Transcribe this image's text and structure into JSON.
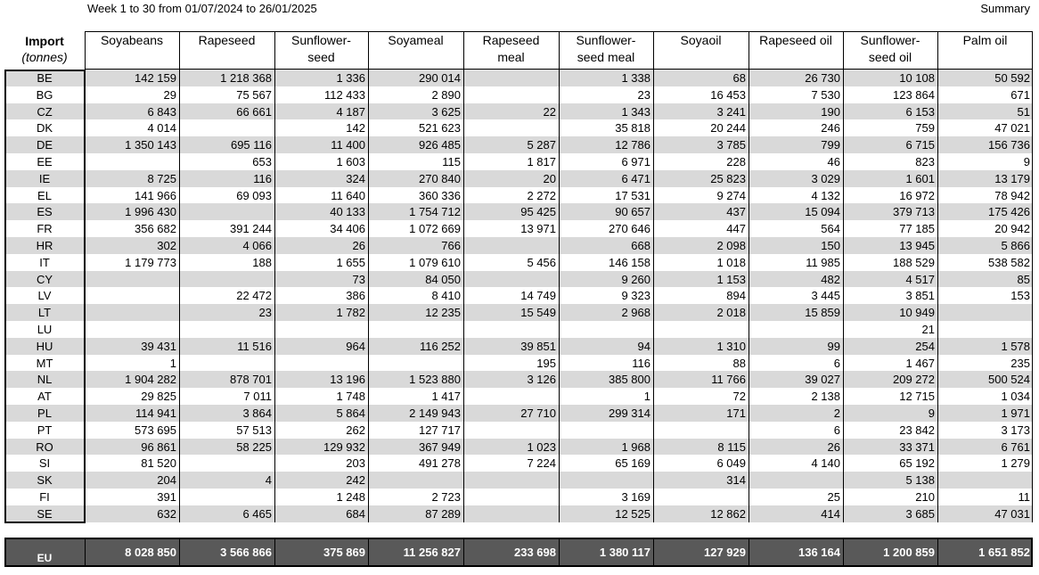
{
  "header": {
    "period": "Week 1 to 30 from 01/07/2024 to 26/01/2025",
    "summary": "Summary"
  },
  "table": {
    "corner": [
      "Import",
      "(tonnes)"
    ],
    "columns": [
      [
        "Soyabeans"
      ],
      [
        "Rapeseed"
      ],
      [
        "Sunflower-",
        "seed"
      ],
      [
        "Soyameal"
      ],
      [
        "Rapeseed",
        "meal"
      ],
      [
        "Sunflower-",
        "seed meal"
      ],
      [
        "Soyaoil"
      ],
      [
        "Rapeseed oil"
      ],
      [
        "Sunflower-",
        "seed oil"
      ],
      [
        "Palm oil"
      ]
    ],
    "rows": [
      [
        "BE",
        "142 159",
        "1 218 368",
        "1 336",
        "290 014",
        null,
        "1 338",
        "68",
        "26 730",
        "10 108",
        "50 592"
      ],
      [
        "BG",
        "29",
        "75 567",
        "112 433",
        "2 890",
        null,
        "23",
        "16 453",
        "7 530",
        "123 864",
        "671"
      ],
      [
        "CZ",
        "6 843",
        "66 661",
        "4 187",
        "3 625",
        "22",
        "1 343",
        "3 241",
        "190",
        "6 153",
        "51"
      ],
      [
        "DK",
        "4 014",
        null,
        "142",
        "521 623",
        null,
        "35 818",
        "20 244",
        "246",
        "759",
        "47 021"
      ],
      [
        "DE",
        "1 350 143",
        "695 116",
        "11 400",
        "926 485",
        "5 287",
        "12 786",
        "3 785",
        "799",
        "6 715",
        "156 736"
      ],
      [
        "EE",
        null,
        "653",
        "1 603",
        "115",
        "1 817",
        "6 971",
        "228",
        "46",
        "823",
        "9"
      ],
      [
        "IE",
        "8 725",
        "116",
        "324",
        "270 840",
        "20",
        "6 471",
        "25 823",
        "3 029",
        "1 601",
        "13 179"
      ],
      [
        "EL",
        "141 966",
        "69 093",
        "11 640",
        "360 336",
        "2 272",
        "17 531",
        "9 274",
        "4 132",
        "16 972",
        "78 942"
      ],
      [
        "ES",
        "1 996 430",
        null,
        "40 133",
        "1 754 712",
        "95 425",
        "90 657",
        "437",
        "15 094",
        "379 713",
        "175 426"
      ],
      [
        "FR",
        "356 682",
        "391 244",
        "34 406",
        "1 072 669",
        "13 971",
        "270 646",
        "447",
        "564",
        "77 185",
        "20 942"
      ],
      [
        "HR",
        "302",
        "4 066",
        "26",
        "766",
        null,
        "668",
        "2 098",
        "150",
        "13 945",
        "5 866"
      ],
      [
        "IT",
        "1 179 773",
        "188",
        "1 655",
        "1 079 610",
        "5 456",
        "146 158",
        "1 018",
        "11 985",
        "188 529",
        "538 582"
      ],
      [
        "CY",
        null,
        null,
        "73",
        "84 050",
        null,
        "9 260",
        "1 153",
        "482",
        "4 517",
        "85"
      ],
      [
        "LV",
        null,
        "22 472",
        "386",
        "8 410",
        "14 749",
        "9 323",
        "894",
        "3 445",
        "3 851",
        "153"
      ],
      [
        "LT",
        null,
        "23",
        "1 782",
        "12 235",
        "15 549",
        "2 968",
        "2 018",
        "15 859",
        "10 949",
        null
      ],
      [
        "LU",
        null,
        null,
        null,
        null,
        null,
        null,
        null,
        null,
        "21",
        null
      ],
      [
        "HU",
        "39 431",
        "11 516",
        "964",
        "116 252",
        "39 851",
        "94",
        "1 310",
        "99",
        "254",
        "1 578"
      ],
      [
        "MT",
        "1",
        null,
        null,
        null,
        "195",
        "116",
        "88",
        "6",
        "1 467",
        "235"
      ],
      [
        "NL",
        "1 904 282",
        "878 701",
        "13 196",
        "1 523 880",
        "3 126",
        "385 800",
        "11 766",
        "39 027",
        "209 272",
        "500 524"
      ],
      [
        "AT",
        "29 825",
        "7 011",
        "1 748",
        "1 417",
        null,
        "1",
        "72",
        "2 138",
        "12 715",
        "1 034"
      ],
      [
        "PL",
        "114 941",
        "3 864",
        "5 864",
        "2 149 943",
        "27 710",
        "299 314",
        "171",
        "2",
        "9",
        "1 971"
      ],
      [
        "PT",
        "573 695",
        "57 513",
        "262",
        "127 717",
        null,
        null,
        null,
        "6",
        "23 842",
        "3 173"
      ],
      [
        "RO",
        "96 861",
        "58 225",
        "129 932",
        "367 949",
        "1 023",
        "1 968",
        "8 115",
        "26",
        "33 371",
        "6 761"
      ],
      [
        "SI",
        "81 520",
        null,
        "203",
        "491 278",
        "7 224",
        "65 169",
        "6 049",
        "4 140",
        "65 192",
        "1 279"
      ],
      [
        "SK",
        "204",
        "4",
        "242",
        null,
        null,
        null,
        "314",
        null,
        "5 138",
        null
      ],
      [
        "FI",
        "391",
        null,
        "1 248",
        "2 723",
        null,
        "3 169",
        null,
        "25",
        "210",
        "11"
      ],
      [
        "SE",
        "632",
        "6 465",
        "684",
        "87 289",
        null,
        "12 525",
        "12 862",
        "414",
        "3 685",
        "47 031"
      ]
    ],
    "total": [
      "EU",
      "8 028 850",
      "3 566 866",
      "375 869",
      "11 256 827",
      "233 698",
      "1 380 117",
      "127 929",
      "136 164",
      "1 200 859",
      "1 651 852"
    ]
  }
}
